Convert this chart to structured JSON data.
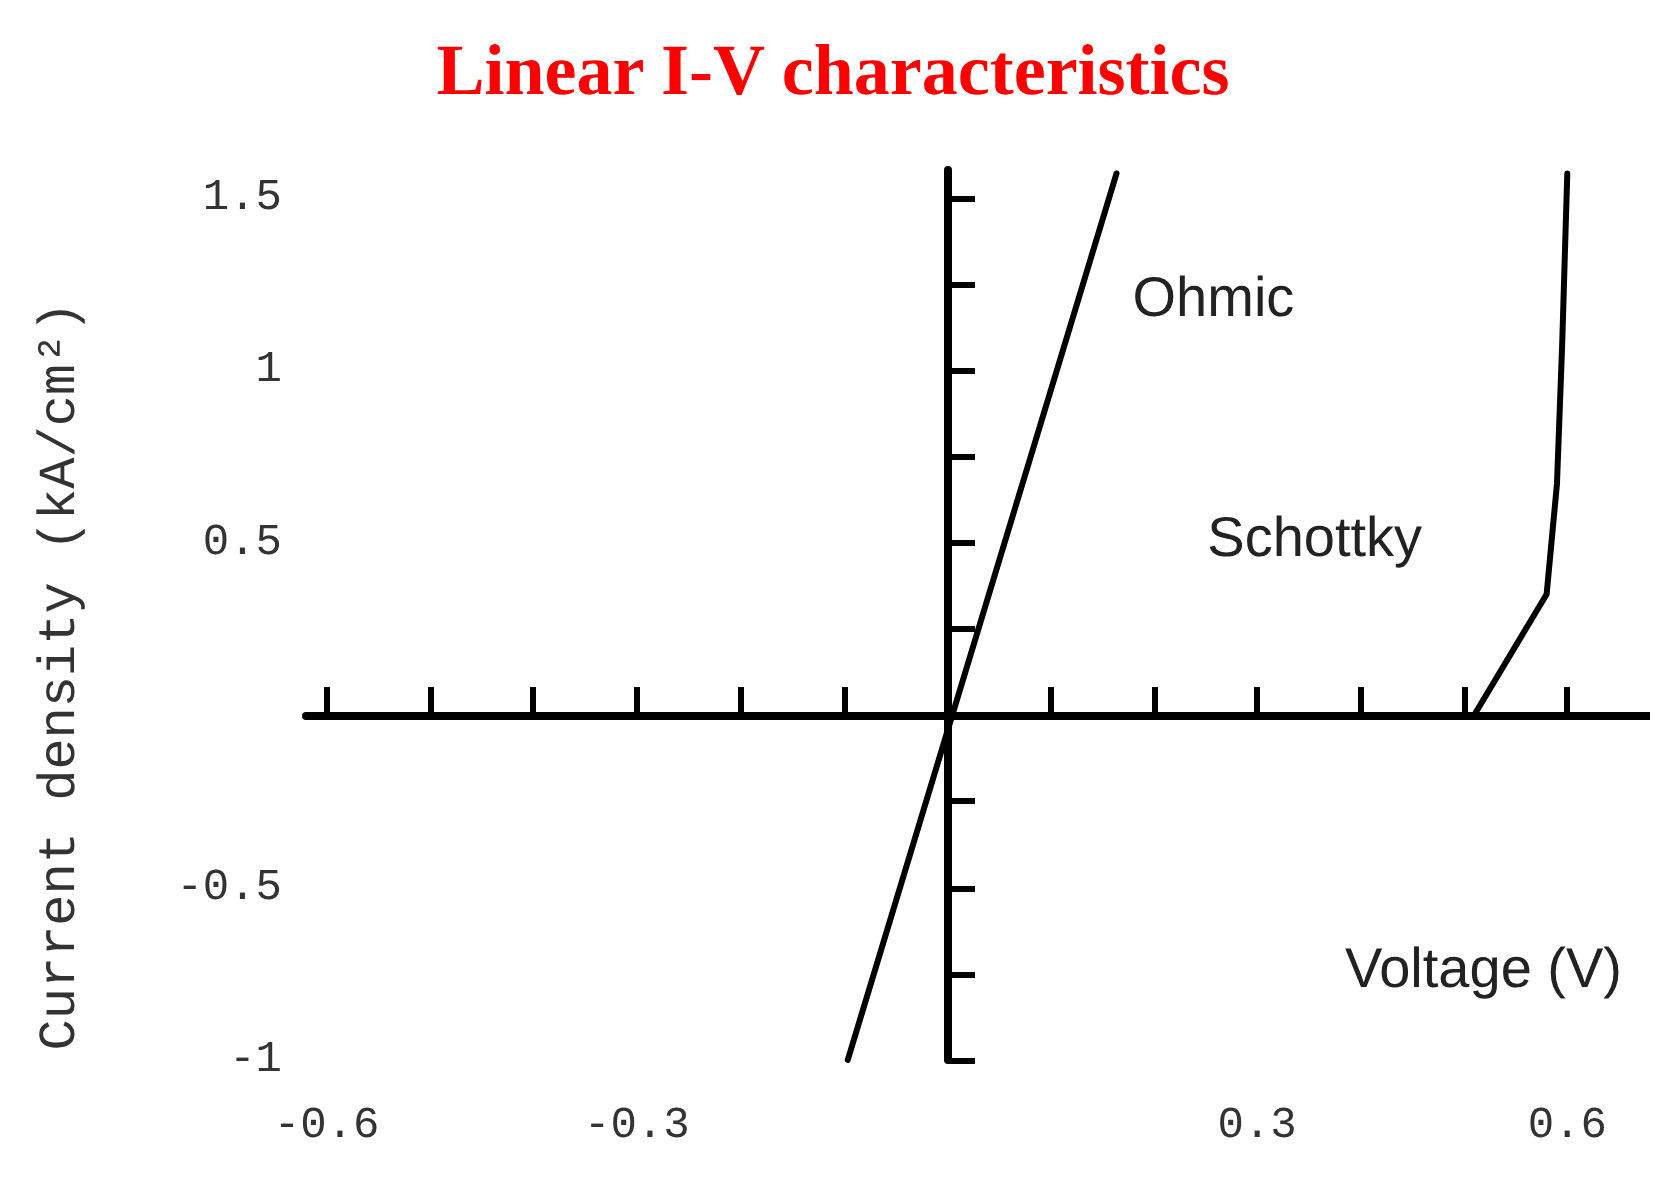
{
  "chart_data": {
    "type": "line",
    "title": "Linear I-V characteristics",
    "xlabel": "Voltage (V)",
    "ylabel": "Current density (kA/cm²)",
    "xlim": [
      -0.62,
      0.68
    ],
    "ylim": [
      -1,
      1.58
    ],
    "xticks": [
      -0.6,
      {
        "value": -0.5,
        "label": null
      },
      {
        "value": -0.4,
        "label": null
      },
      -0.3,
      {
        "value": -0.2,
        "label": null
      },
      {
        "value": -0.1,
        "label": null
      },
      {
        "value": 0.1,
        "label": null
      },
      {
        "value": 0.2,
        "label": null
      },
      0.3,
      {
        "value": 0.4,
        "label": null
      },
      {
        "value": 0.5,
        "label": null
      },
      0.6
    ],
    "yticks": [
      -1,
      {
        "value": -0.75,
        "label": null
      },
      -0.5,
      {
        "value": -0.25,
        "label": null
      },
      {
        "value": 0.25,
        "label": null
      },
      0.5,
      {
        "value": 0.75,
        "label": null
      },
      1,
      {
        "value": 1.25,
        "label": null
      },
      1.5
    ],
    "grid": false,
    "legend": false,
    "marker": "none",
    "line_style": "solid",
    "series": [
      {
        "name": "Ohmic",
        "color": "#000000",
        "x": [
          -0.096,
          0.164
        ],
        "values": [
          -1,
          1.57
        ]
      },
      {
        "name": "Schottky",
        "color": "#000000",
        "x": [
          0.47,
          0.51,
          0.58,
          0.59,
          0.595,
          0.6
        ],
        "values": [
          0,
          0,
          0.35,
          0.67,
          1.07,
          1.57
        ]
      }
    ]
  }
}
